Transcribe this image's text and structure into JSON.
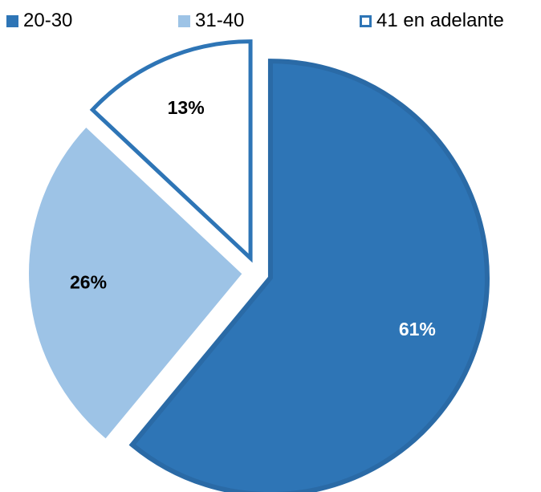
{
  "chart_data": {
    "type": "pie",
    "title": "",
    "slices": [
      {
        "label": "20-30",
        "value": 61,
        "display": "61%",
        "color": "#2E75B6",
        "border": "#2A6AA6",
        "text_color": "#FFFFFF"
      },
      {
        "label": "31-40",
        "value": 26,
        "display": "26%",
        "color": "#9DC3E6",
        "border": "#FFFFFF",
        "text_color": "#000000"
      },
      {
        "label": "41 en adelante",
        "value": 13,
        "display": "13%",
        "color": "#FFFFFF",
        "border": "#2E75B6",
        "text_color": "#000000"
      }
    ],
    "legend_position": "top",
    "exploded": true
  }
}
